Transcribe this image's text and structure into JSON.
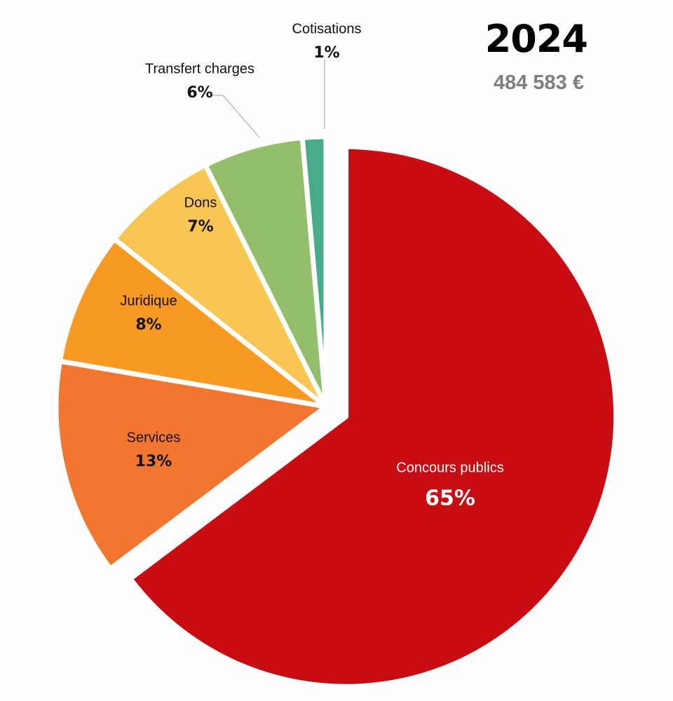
{
  "header": {
    "year": "2024",
    "total": "484 583 €"
  },
  "chart_data": {
    "type": "pie",
    "start_angle_deg": 0,
    "direction": "clockwise",
    "exploded_slice": "Concours publics",
    "slices": [
      {
        "label": "Concours publics",
        "pct_label": "65%",
        "value": 65.0,
        "color": "#c80c11",
        "label_color": "#ffffff"
      },
      {
        "label": "Services",
        "pct_label": "13%",
        "value": 13.0,
        "color": "#f27630",
        "label_color": "#111111"
      },
      {
        "label": "Juridique",
        "pct_label": "8%",
        "value": 8.0,
        "color": "#f89a22",
        "label_color": "#111111"
      },
      {
        "label": "Dons",
        "pct_label": "7%",
        "value": 7.0,
        "color": "#f9c653",
        "label_color": "#111111"
      },
      {
        "label": "Transfert charges",
        "pct_label": "6%",
        "value": 6.0,
        "color": "#93bf6d",
        "label_color": "#111111"
      },
      {
        "label": "Cotisations",
        "pct_label": "1%",
        "value": 1.4,
        "color": "#47ac88",
        "label_color": "#111111"
      }
    ]
  }
}
